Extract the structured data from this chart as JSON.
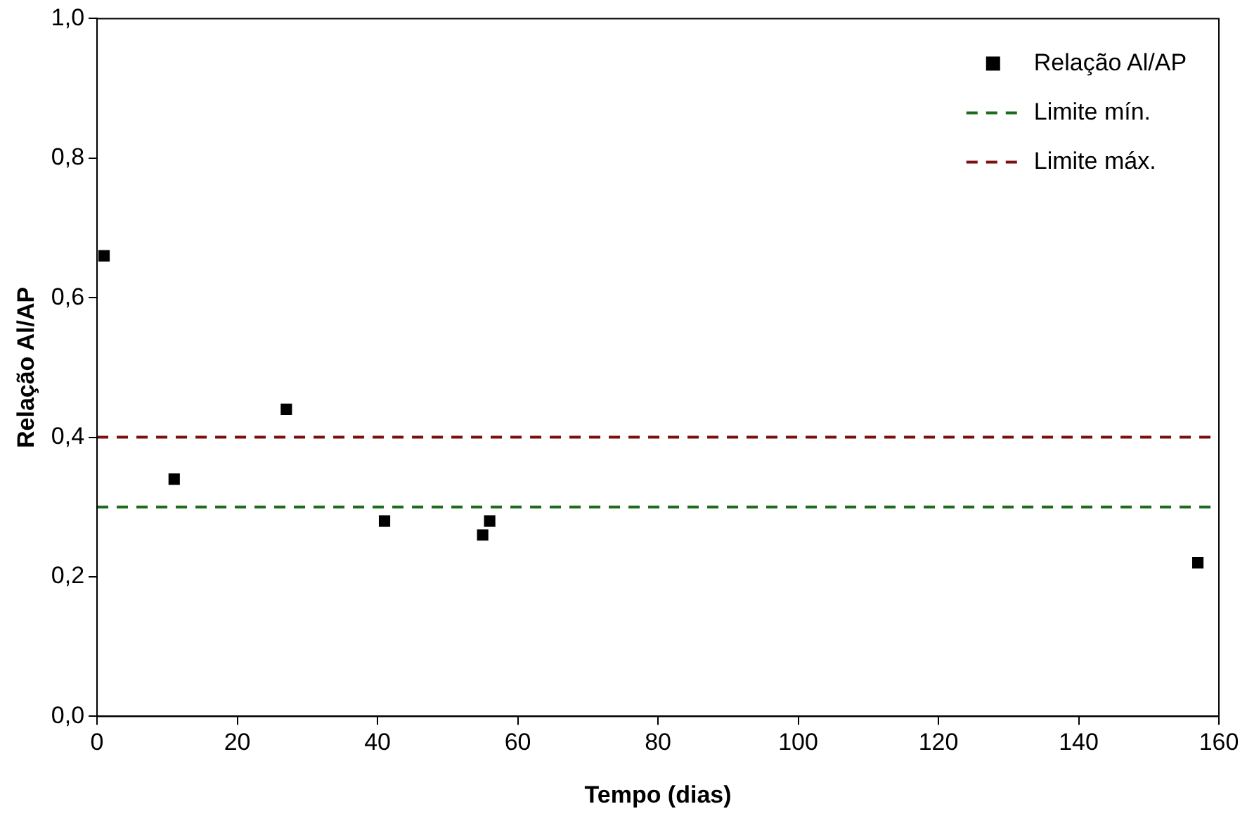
{
  "chart_data": {
    "type": "scatter",
    "xlabel": "Tempo (dias)",
    "ylabel": "Relação Al/AP",
    "x": [
      1,
      11,
      27,
      41,
      55,
      56,
      157
    ],
    "series": [
      {
        "name": "Relação Al/AP",
        "color": "#000000",
        "values": [
          0.66,
          0.34,
          0.44,
          0.28,
          0.26,
          0.28,
          0.22
        ]
      }
    ],
    "xlim": [
      0,
      160
    ],
    "xticks": [
      0,
      20,
      40,
      60,
      80,
      100,
      120,
      140,
      160
    ],
    "ylim": [
      0,
      1
    ],
    "yticks": [
      {
        "value": 0,
        "label": "0,0"
      },
      {
        "value": 0.2,
        "label": "0,2"
      },
      {
        "value": 0.4,
        "label": "0,4"
      },
      {
        "value": 0.6,
        "label": "0,6"
      },
      {
        "value": 0.8,
        "label": "0,8"
      },
      {
        "value": 1,
        "label": "1,0"
      }
    ],
    "ref_lines": [
      {
        "axis": "y",
        "value": 0.3,
        "label": "Limite mín.",
        "color": "#1e6b1e",
        "line_style": "dashed"
      },
      {
        "axis": "y",
        "value": 0.4,
        "label": "Limite máx.",
        "color": "#7b1010",
        "line_style": "dashed"
      }
    ],
    "marker": "square",
    "grid": false,
    "legend": "top right"
  }
}
